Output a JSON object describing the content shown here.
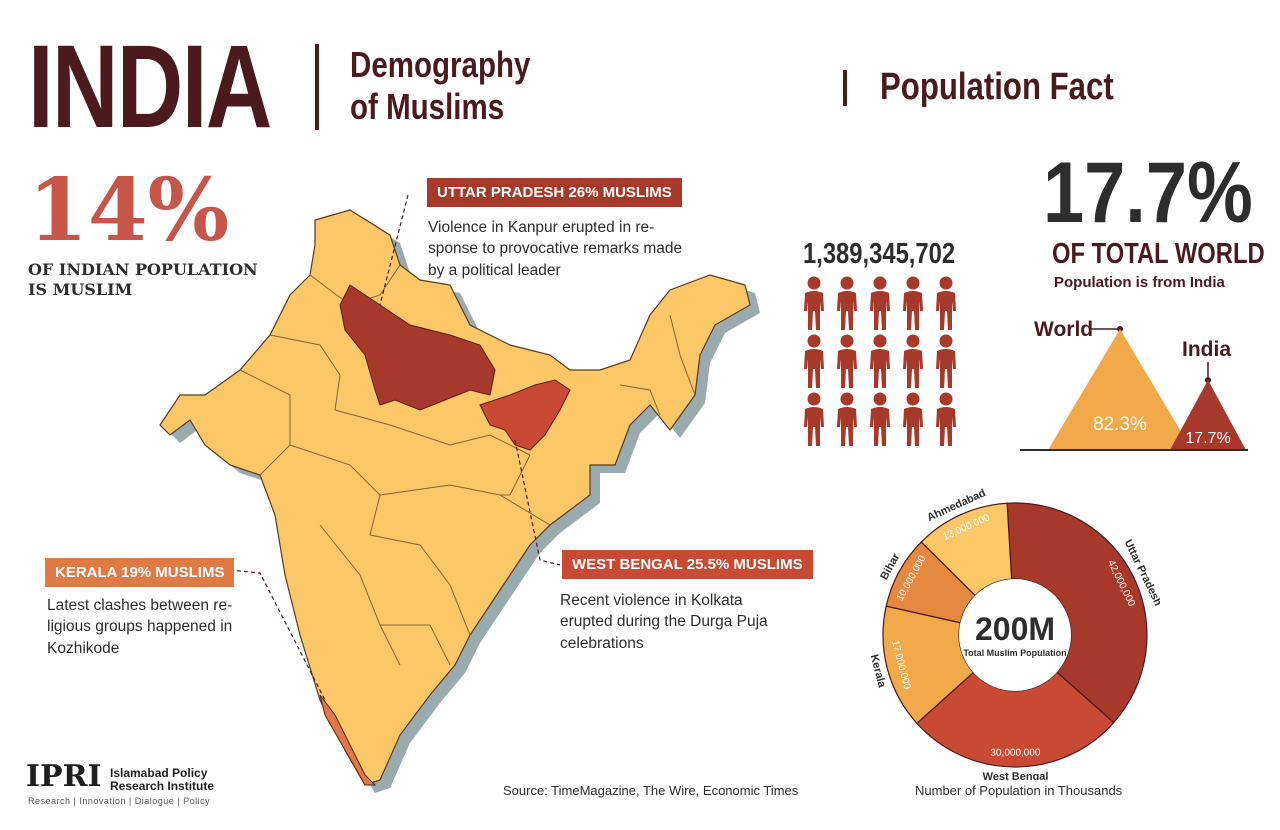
{
  "header": {
    "title": "INDIA",
    "subtitle_line1": "Demography",
    "subtitle_line2": "of Muslims",
    "section": "Population Fact"
  },
  "stat_left": {
    "value": "14%",
    "label_line1": "OF INDIAN POPULATION",
    "label_line2": "IS MUSLIM"
  },
  "callouts": {
    "uttar_pradesh": {
      "tag": "UTTAR PRADESH 26% MUSLIMS",
      "text_line1": "Violence in Kanpur erupted in re-",
      "text_line2": "sponse to provocative remarks made",
      "text_line3": "by a political leader"
    },
    "west_bengal": {
      "tag": "WEST BENGAL 25.5% MUSLIMS",
      "text_line1": "Recent violence in Kolkata",
      "text_line2": "erupted during the Durga Puja",
      "text_line3": "celebrations"
    },
    "kerala": {
      "tag": "KERALA 19% MUSLIMS",
      "text_line1": "Latest clashes between re-",
      "text_line2": "ligious groups happened in",
      "text_line3": "Kozhikode"
    }
  },
  "population": {
    "total": "1,389,345,702",
    "people_icons": 15
  },
  "world_share": {
    "value": "17.7%",
    "label": "OF TOTAL WORLD",
    "sublabel": "Population is from India",
    "world_label": "World",
    "india_label": "India",
    "world_pct": "82.3%",
    "india_pct": "17.7%"
  },
  "chart_data": {
    "type": "pie",
    "variant": "donut",
    "center_value": "200M",
    "center_label": "Total Muslim Population",
    "caption": "Number of Population in Thousands",
    "slices": [
      {
        "name": "Uttar Pradesh",
        "value": 42000000,
        "label": "42,000,000"
      },
      {
        "name": "West Bengal",
        "value": 30000000,
        "label": "30,000,000"
      },
      {
        "name": "Kerala",
        "value": 17000000,
        "label": "17,000,000"
      },
      {
        "name": "Bihar",
        "value": 10000000,
        "label": "10,000,000"
      },
      {
        "name": "Ahmedabad",
        "value": 13000000,
        "label": "13,000,000"
      }
    ]
  },
  "footer": {
    "source": "Source: TimeMagazine, The Wire, Economic Times",
    "logo": "IPRI",
    "org_line1": "Islamabad Policy",
    "org_line2": "Research Institute",
    "org_tagline": "Research | Innovation | Dialogue | Policy"
  },
  "colors": {
    "maroon": "#4a1a1f",
    "state_base": "#fcc766",
    "uttar_pradesh": "#a7392a",
    "west_bengal": "#c84a33",
    "kerala": "#e07a45",
    "ahmedabad": "#fcc766",
    "accent_red": "#c8554a"
  }
}
